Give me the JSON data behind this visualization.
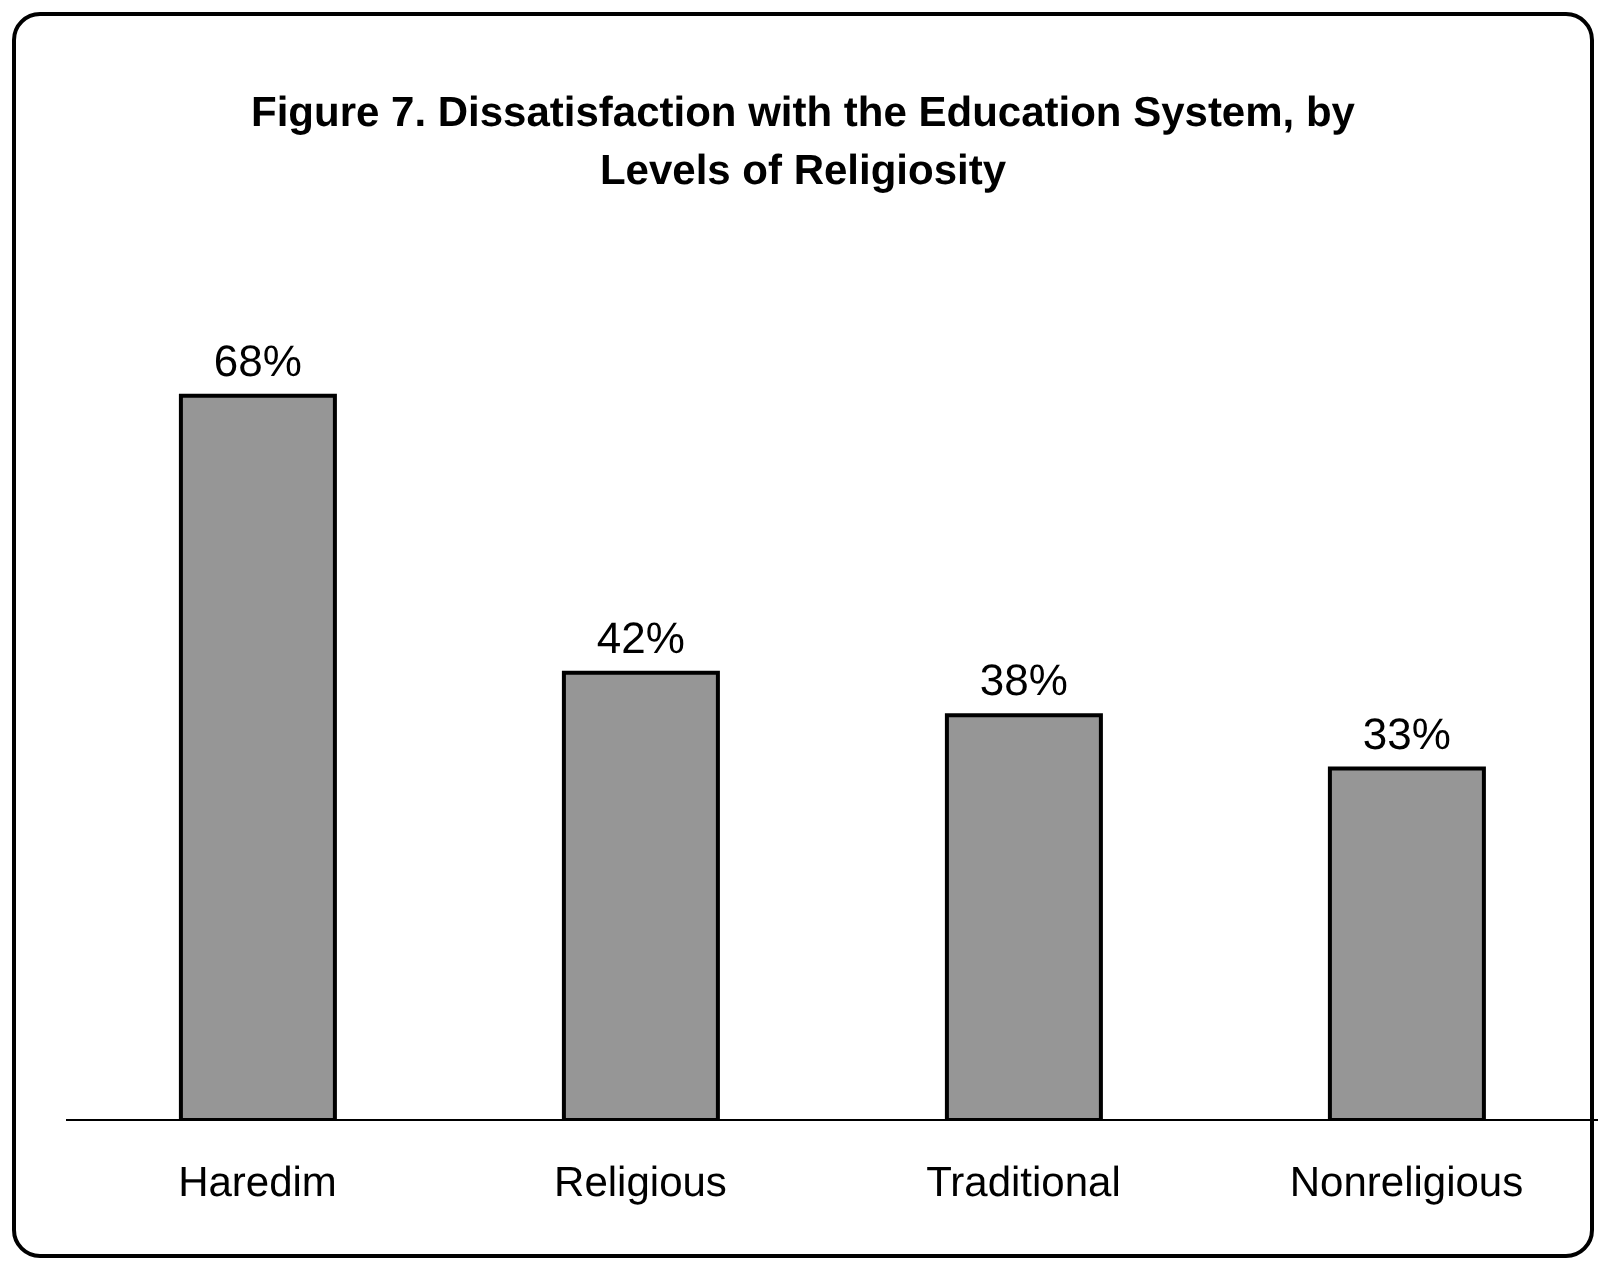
{
  "chart_data": {
    "type": "bar",
    "title": "Figure 7. Dissatisfaction with the Education System, by Levels of Religiosity",
    "categories": [
      "Haredim",
      "Religious",
      "Traditional",
      "Nonreligious"
    ],
    "values": [
      68,
      42,
      38,
      33
    ],
    "value_labels": [
      "68%",
      "42%",
      "38%",
      "33%"
    ],
    "color": "#969696"
  }
}
